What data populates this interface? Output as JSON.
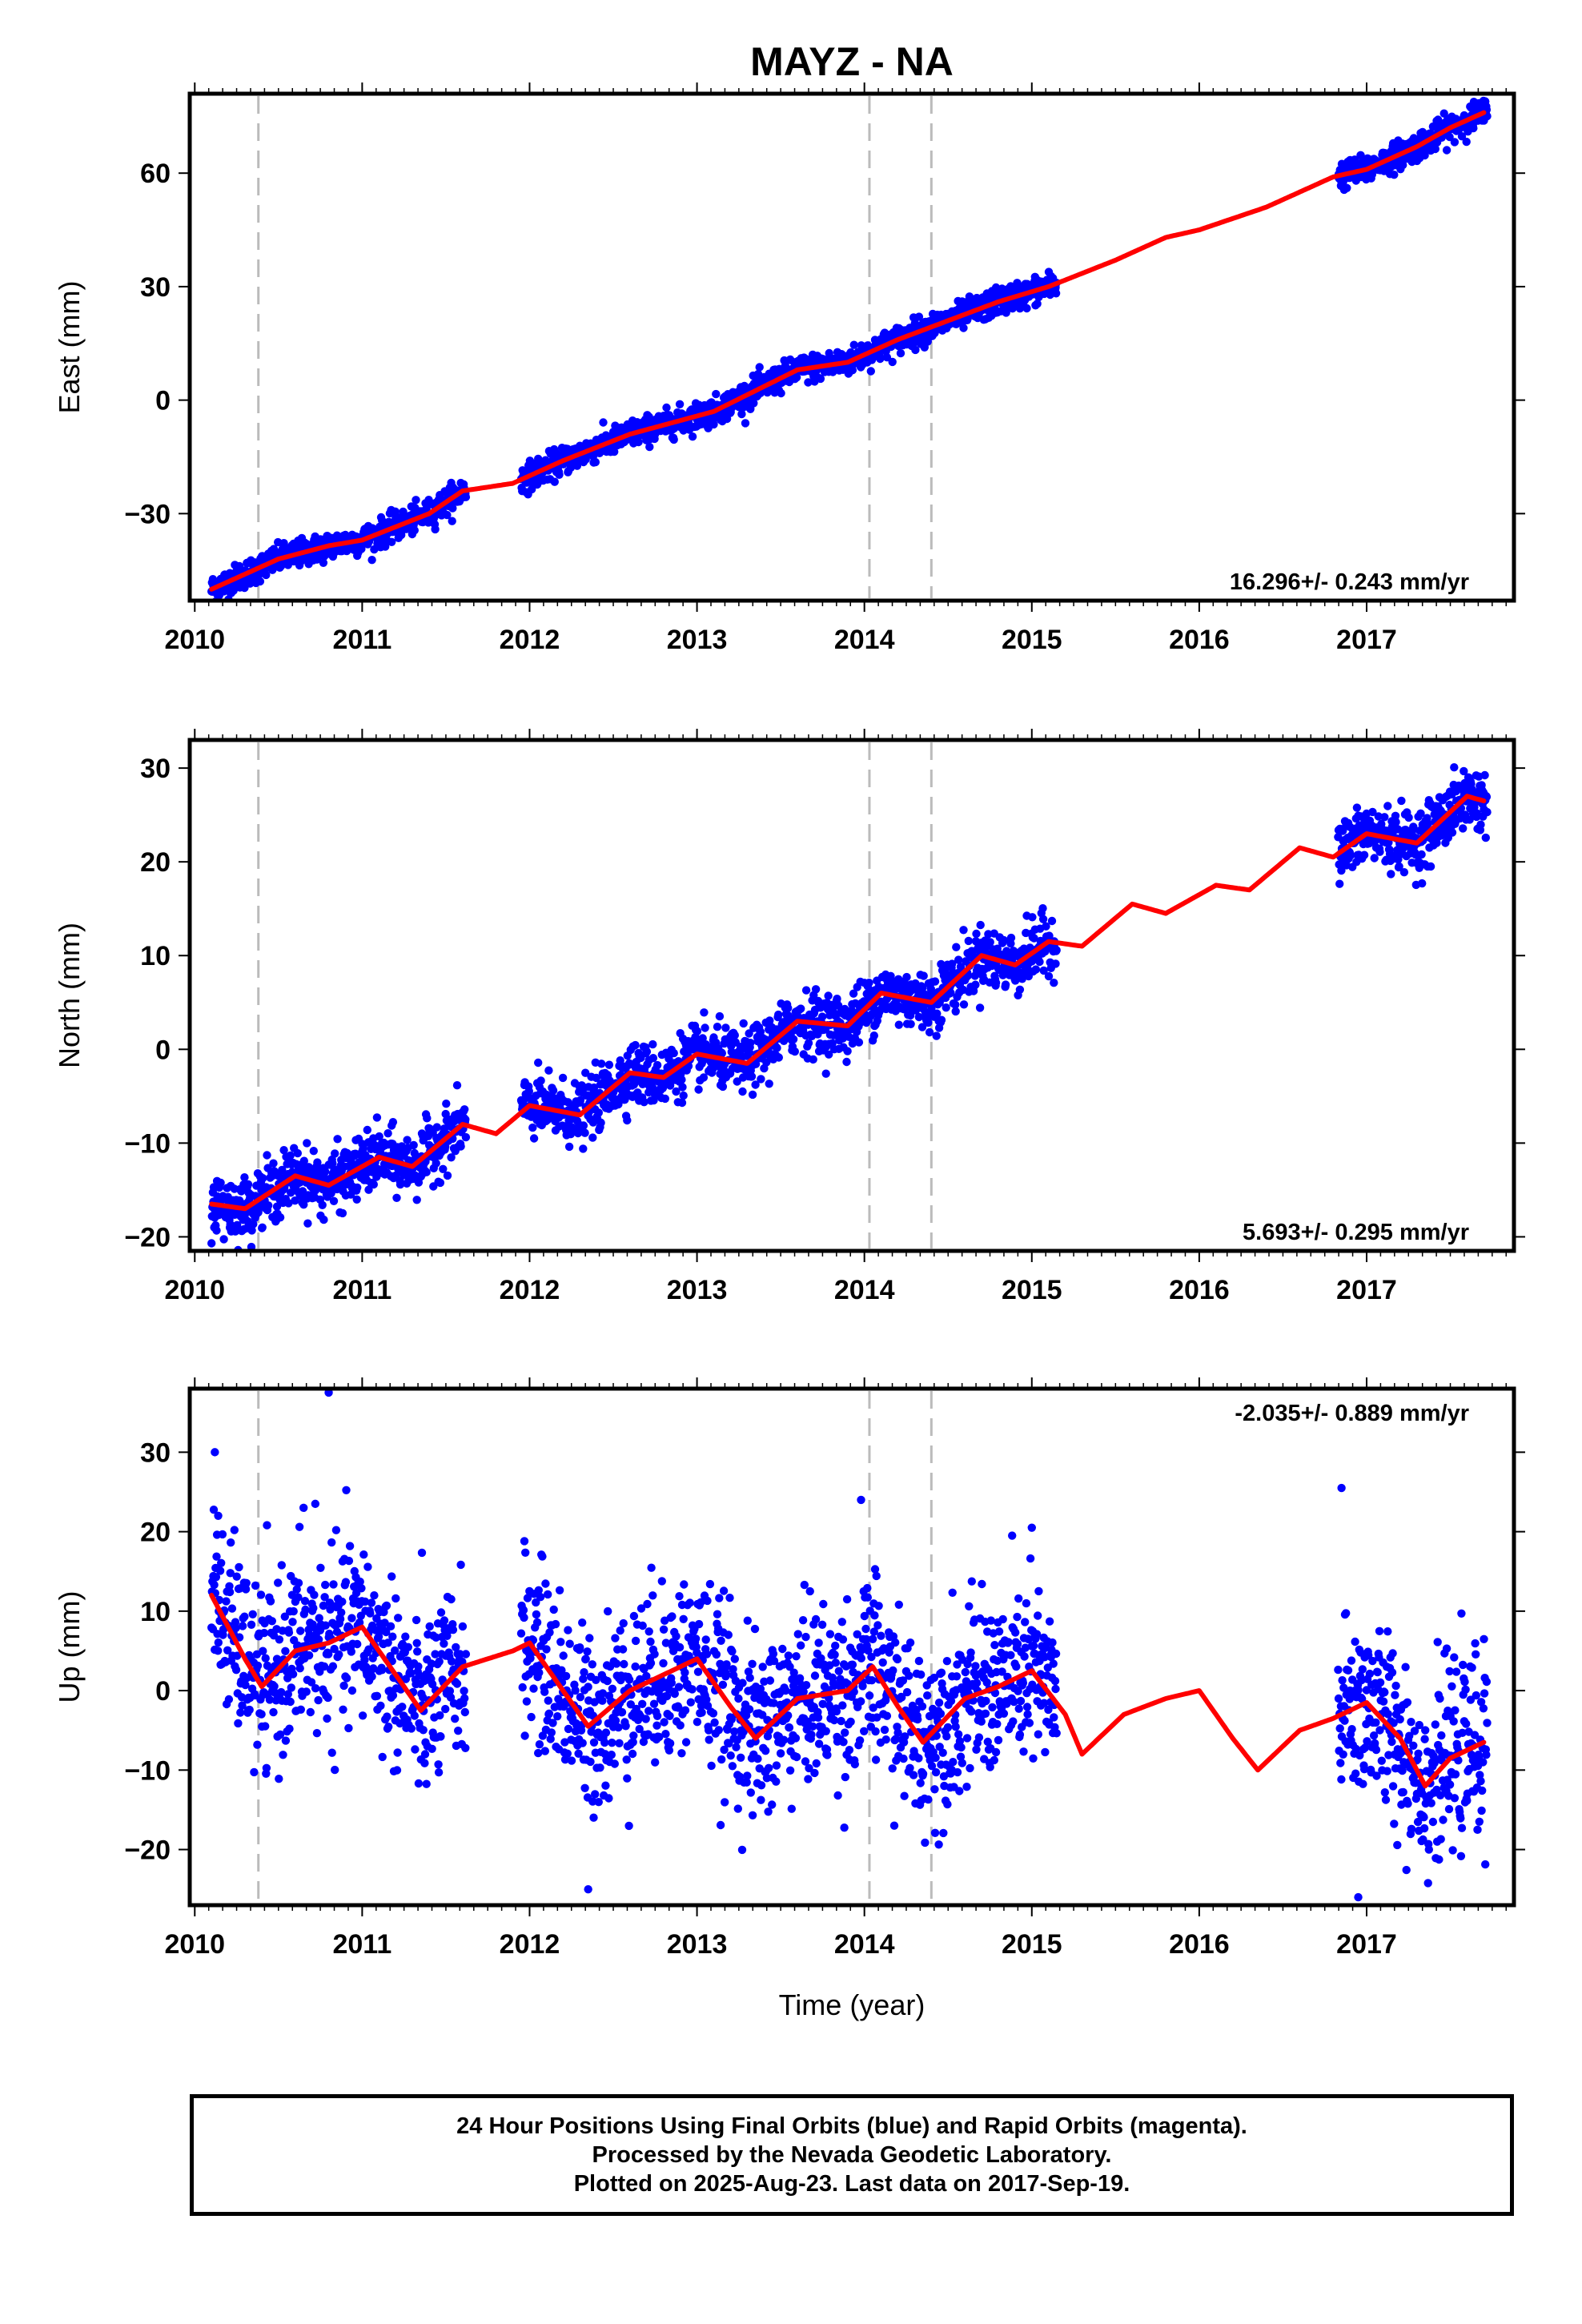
{
  "title": "MAYZ - NA",
  "xlabel": "Time (year)",
  "footer": {
    "line1": "24 Hour Positions Using Final Orbits (blue) and Rapid Orbits (magenta).",
    "line2": "Processed by the Nevada Geodetic Laboratory.",
    "line3": "Plotted on 2025-Aug-23. Last data on 2017-Sep-19."
  },
  "colors": {
    "points": "#0000ff",
    "model": "#ff0000",
    "equipment_change": "#bbbbbb",
    "frame": "#000000"
  },
  "chart_data": [
    {
      "type": "scatter",
      "component": "east",
      "ylabel": "East (mm)",
      "rate_label": "16.296+/- 0.243 mm/yr",
      "xlim": [
        2009.97,
        2017.88
      ],
      "ylim": [
        -53,
        81
      ],
      "xticks": [
        2010,
        2011,
        2012,
        2013,
        2014,
        2015,
        2016,
        2017
      ],
      "yticks": [
        -30,
        0,
        30,
        60
      ],
      "ytick_labels": [
        "−30",
        "0",
        "30",
        "60"
      ],
      "grid": false,
      "equipment_changes": [
        2010.38,
        2014.03,
        2014.4
      ],
      "data_spans": [
        [
          2010.1,
          2011.62
        ],
        [
          2011.95,
          2015.15
        ],
        [
          2016.83,
          2017.72
        ]
      ],
      "rate": 16.296,
      "ref_year": 2013.0,
      "ref_value": -2.0,
      "seasonal": {
        "annual_amp": 1.8,
        "annual_phase": 0.6,
        "semiannual_amp": 0.5,
        "semiannual_phase": 1.1
      },
      "scatter": 1.8,
      "model_curve": [
        [
          2010.1,
          -50
        ],
        [
          2010.5,
          -42
        ],
        [
          2010.8,
          -38.5
        ],
        [
          2011.0,
          -37
        ],
        [
          2011.4,
          -30
        ],
        [
          2011.6,
          -24
        ],
        [
          2011.9,
          -22
        ],
        [
          2012.2,
          -16
        ],
        [
          2012.6,
          -9
        ],
        [
          2012.85,
          -6
        ],
        [
          2013.1,
          -3
        ],
        [
          2013.6,
          8
        ],
        [
          2013.9,
          10
        ],
        [
          2014.2,
          16
        ],
        [
          2014.5,
          21
        ],
        [
          2014.8,
          26
        ],
        [
          2015.1,
          30
        ],
        [
          2015.5,
          37
        ],
        [
          2015.8,
          43
        ],
        [
          2016.0,
          45
        ],
        [
          2016.4,
          51
        ],
        [
          2016.6,
          55
        ],
        [
          2016.8,
          59
        ],
        [
          2017.0,
          61
        ],
        [
          2017.3,
          67
        ],
        [
          2017.5,
          72
        ],
        [
          2017.7,
          76
        ]
      ]
    },
    {
      "type": "scatter",
      "component": "north",
      "ylabel": "North (mm)",
      "rate_label": "5.693+/- 0.295 mm/yr",
      "xlim": [
        2009.97,
        2017.88
      ],
      "ylim": [
        -21.5,
        33
      ],
      "xticks": [
        2010,
        2011,
        2012,
        2013,
        2014,
        2015,
        2016,
        2017
      ],
      "yticks": [
        -20,
        -10,
        0,
        10,
        20,
        30
      ],
      "ytick_labels": [
        "−20",
        "−10",
        "0",
        "10",
        "20",
        "30"
      ],
      "grid": false,
      "equipment_changes": [
        2010.38,
        2014.03,
        2014.4
      ],
      "data_spans": [
        [
          2010.1,
          2011.62
        ],
        [
          2011.95,
          2015.15
        ],
        [
          2016.83,
          2017.72
        ]
      ],
      "rate": 5.693,
      "ref_year": 2013.0,
      "ref_value": -1.0,
      "seasonal": {
        "annual_amp": 1.3,
        "annual_phase": 2.2,
        "semiannual_amp": 0.4,
        "semiannual_phase": 0.3
      },
      "scatter": 1.6,
      "model_curve": [
        [
          2010.1,
          -16.5
        ],
        [
          2010.3,
          -17
        ],
        [
          2010.6,
          -13.5
        ],
        [
          2010.8,
          -14.5
        ],
        [
          2011.1,
          -11.5
        ],
        [
          2011.3,
          -12.5
        ],
        [
          2011.6,
          -8
        ],
        [
          2011.8,
          -9
        ],
        [
          2012.0,
          -6
        ],
        [
          2012.3,
          -7
        ],
        [
          2012.6,
          -2.5
        ],
        [
          2012.8,
          -3
        ],
        [
          2013.0,
          -0.5
        ],
        [
          2013.3,
          -1.5
        ],
        [
          2013.6,
          3
        ],
        [
          2013.9,
          2.5
        ],
        [
          2014.1,
          6
        ],
        [
          2014.4,
          5
        ],
        [
          2014.7,
          10
        ],
        [
          2014.9,
          9
        ],
        [
          2015.1,
          11.5
        ],
        [
          2015.3,
          11
        ],
        [
          2015.6,
          15.5
        ],
        [
          2015.8,
          14.5
        ],
        [
          2016.1,
          17.5
        ],
        [
          2016.3,
          17
        ],
        [
          2016.6,
          21.5
        ],
        [
          2016.8,
          20.5
        ],
        [
          2017.0,
          23
        ],
        [
          2017.3,
          22
        ],
        [
          2017.6,
          27
        ],
        [
          2017.7,
          26.5
        ]
      ]
    },
    {
      "type": "scatter",
      "component": "up",
      "ylabel": "Up (mm)",
      "rate_label": "-2.035+/- 0.889 mm/yr",
      "xlim": [
        2009.97,
        2017.88
      ],
      "ylim": [
        -27,
        38
      ],
      "xticks": [
        2010,
        2011,
        2012,
        2013,
        2014,
        2015,
        2016,
        2017
      ],
      "yticks": [
        -20,
        -10,
        0,
        10,
        20,
        30
      ],
      "ytick_labels": [
        "−20",
        "−10",
        "0",
        "10",
        "20",
        "30"
      ],
      "grid": false,
      "equipment_changes": [
        2010.38,
        2014.03,
        2014.4
      ],
      "data_spans": [
        [
          2010.1,
          2011.62
        ],
        [
          2011.95,
          2015.15
        ],
        [
          2016.83,
          2017.72
        ]
      ],
      "rate": -2.035,
      "ref_year": 2013.0,
      "ref_value": 1.0,
      "seasonal": {
        "annual_amp": 4.5,
        "annual_phase": 0.9,
        "semiannual_amp": 1.0,
        "semiannual_phase": 0.2
      },
      "scatter": 5.5,
      "model_curve": [
        [
          2010.1,
          12
        ],
        [
          2010.3,
          4
        ],
        [
          2010.4,
          0.5
        ],
        [
          2010.6,
          5
        ],
        [
          2010.8,
          6
        ],
        [
          2011.0,
          8
        ],
        [
          2011.2,
          2
        ],
        [
          2011.35,
          -2.5
        ],
        [
          2011.6,
          3
        ],
        [
          2011.9,
          5
        ],
        [
          2012.0,
          6
        ],
        [
          2012.2,
          0
        ],
        [
          2012.35,
          -4.5
        ],
        [
          2012.6,
          0
        ],
        [
          2012.8,
          2
        ],
        [
          2013.0,
          4
        ],
        [
          2013.2,
          -2
        ],
        [
          2013.35,
          -6
        ],
        [
          2013.6,
          -1
        ],
        [
          2013.9,
          0
        ],
        [
          2014.05,
          3
        ],
        [
          2014.2,
          -2
        ],
        [
          2014.35,
          -6.5
        ],
        [
          2014.6,
          -1
        ],
        [
          2014.8,
          0.5
        ],
        [
          2015.0,
          2.5
        ],
        [
          2015.2,
          -3
        ],
        [
          2015.3,
          -8
        ],
        [
          2015.55,
          -3
        ],
        [
          2015.8,
          -1
        ],
        [
          2016.0,
          0
        ],
        [
          2016.2,
          -6
        ],
        [
          2016.35,
          -10
        ],
        [
          2016.6,
          -5
        ],
        [
          2016.8,
          -3.5
        ],
        [
          2017.0,
          -1.5
        ],
        [
          2017.2,
          -6
        ],
        [
          2017.35,
          -12
        ],
        [
          2017.5,
          -8.5
        ],
        [
          2017.7,
          -6.5
        ]
      ]
    }
  ],
  "outliers": [
    {
      "panel": 2,
      "x": 2010.12,
      "y": 30
    },
    {
      "panel": 2,
      "x": 2010.8,
      "y": 37.5
    },
    {
      "panel": 2,
      "x": 2010.65,
      "y": 23
    },
    {
      "panel": 2,
      "x": 2010.72,
      "y": 23.5
    },
    {
      "panel": 2,
      "x": 2012.35,
      "y": -25
    },
    {
      "panel": 2,
      "x": 2013.98,
      "y": 24
    },
    {
      "panel": 2,
      "x": 2015.0,
      "y": 20.5
    },
    {
      "panel": 2,
      "x": 2016.85,
      "y": 25.5
    },
    {
      "panel": 2,
      "x": 2016.95,
      "y": -26
    },
    {
      "panel": 2,
      "x": 2010.14,
      "y": 22
    }
  ]
}
